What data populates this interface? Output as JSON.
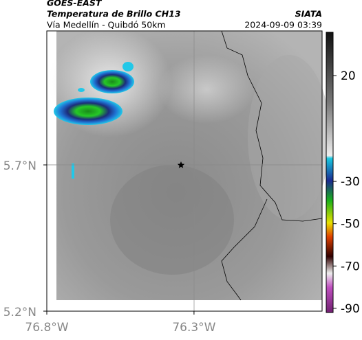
{
  "header": {
    "title": "GOES-EAST",
    "subtitle": "Temperatura de Brillo CH13",
    "route": "Vía Medellín - Quibdó 50km",
    "source": "SIATA",
    "datetime": "2024-09-09 03:39"
  },
  "map": {
    "xlim": [
      -76.8,
      -75.865
    ],
    "ylim": [
      5.2,
      6.158
    ],
    "xticks": [
      {
        "value": -76.8,
        "label": "76.8°W"
      },
      {
        "value": -76.3,
        "label": "76.3°W"
      }
    ],
    "yticks": [
      {
        "value": 5.2,
        "label": "5.2°N"
      },
      {
        "value": 5.7,
        "label": "5.7°N"
      }
    ]
  },
  "colorbar": {
    "lim": [
      -92,
      40.5
    ],
    "ticks": [
      20,
      -30,
      -50,
      -70,
      -90
    ]
  }
}
